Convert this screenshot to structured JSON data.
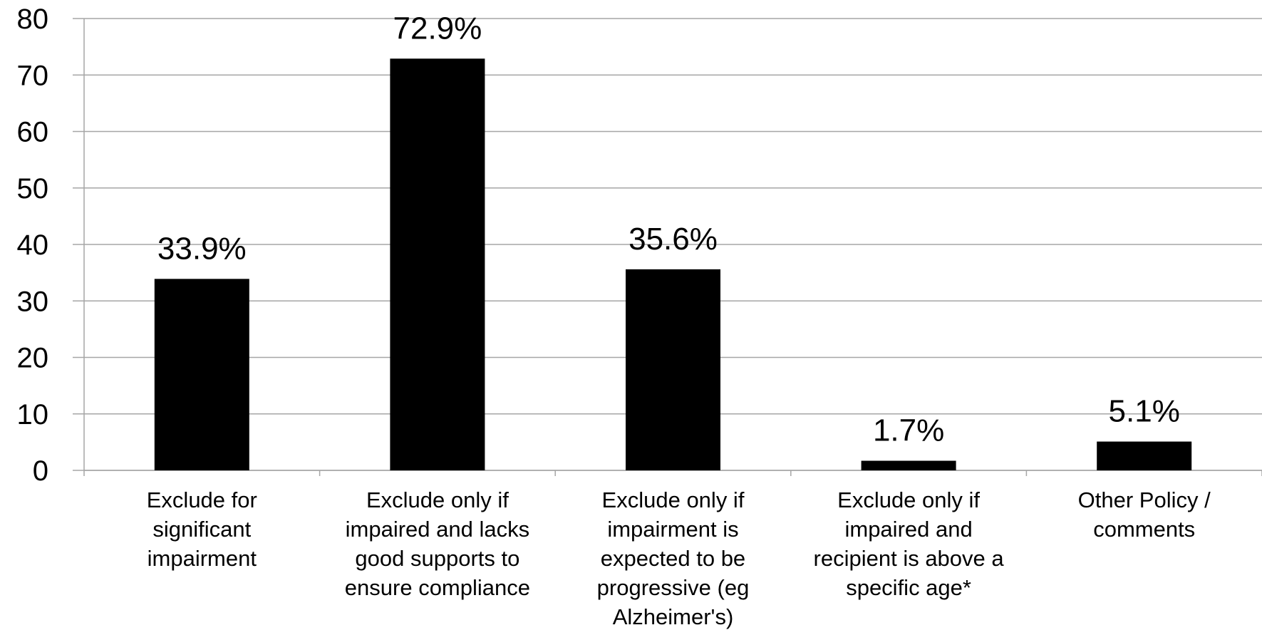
{
  "chart_data": {
    "type": "bar",
    "categories": [
      [
        "Exclude for",
        "significant",
        "impairment"
      ],
      [
        "Exclude only if",
        "impaired and lacks",
        "good supports to",
        "ensure compliance"
      ],
      [
        "Exclude only if",
        "impairment is",
        "expected to be",
        "progressive (eg",
        "Alzheimer's)"
      ],
      [
        "Exclude only if",
        "impaired and",
        "recipient is above a",
        "specific age*"
      ],
      [
        "Other Policy /",
        "comments"
      ]
    ],
    "values": [
      33.9,
      72.9,
      35.6,
      1.7,
      5.1
    ],
    "data_labels": [
      "33.9%",
      "72.9%",
      "35.6%",
      "1.7%",
      "5.1%"
    ],
    "ylim": [
      0,
      80
    ],
    "yticks": [
      "0",
      "10",
      "20",
      "30",
      "40",
      "50",
      "60",
      "70",
      "80"
    ],
    "grid": true,
    "bar_color": "#000000",
    "grid_color": "#a6a6a6"
  }
}
